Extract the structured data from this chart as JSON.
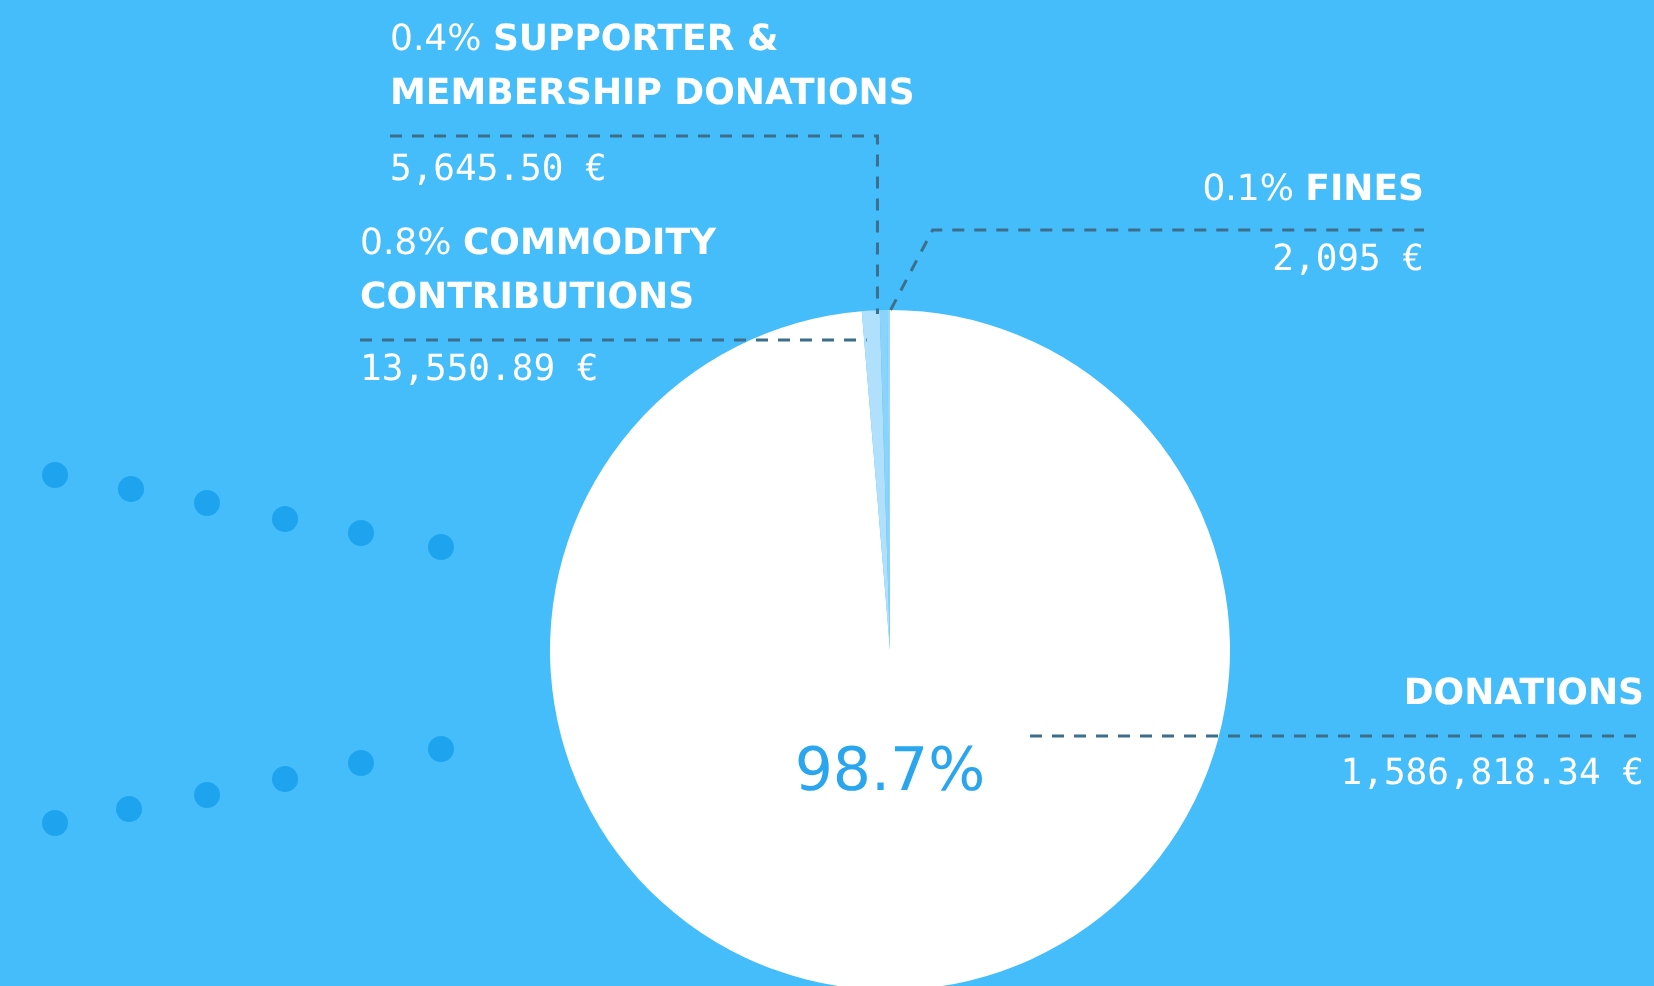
{
  "chart_data": {
    "type": "pie",
    "categories": [
      "DONATIONS",
      "COMMODITY CONTRIBUTIONS",
      "SUPPORTER & MEMBERSHIP DONATIONS",
      "FINES"
    ],
    "values": [
      1586818.34,
      13550.89,
      5645.5,
      2095
    ],
    "colors": [
      "#ffffff",
      "#b0e0fb",
      "#8ad3fa",
      "#9bd9fa"
    ],
    "value_labels": [
      "1,586,818.34 €",
      "13,550.89 €",
      "5,645.50 €",
      "2,095 €"
    ],
    "annotations": [
      "98.7%",
      "0.8%",
      "0.4%",
      "0.1%"
    ],
    "legend": false
  }
}
